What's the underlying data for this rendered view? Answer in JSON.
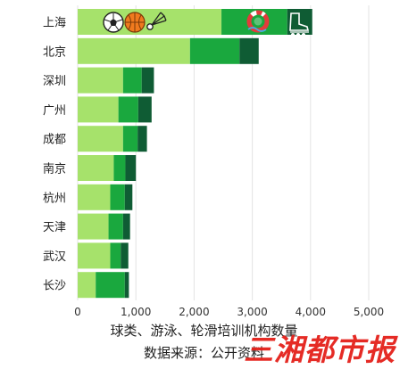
{
  "chart_data": {
    "type": "bar",
    "orientation": "horizontal",
    "stacked": true,
    "categories": [
      "上海",
      "北京",
      "深圳",
      "广州",
      "成都",
      "南京",
      "杭州",
      "天津",
      "武汉",
      "长沙"
    ],
    "series": [
      {
        "color": "#a6e26b",
        "values": [
          2470,
          1930,
          780,
          700,
          780,
          620,
          560,
          530,
          560,
          310
        ]
      },
      {
        "color": "#1aa83e",
        "values": [
          1130,
          850,
          320,
          340,
          250,
          200,
          250,
          250,
          180,
          500
        ]
      },
      {
        "color": "#0f5c34",
        "values": [
          430,
          330,
          210,
          230,
          160,
          180,
          130,
          120,
          130,
          70
        ]
      }
    ],
    "xlim": [
      0,
      5000
    ],
    "xticks": [
      0,
      1000,
      2000,
      3000,
      4000,
      5000
    ],
    "xtick_labels": [
      "0",
      "1,000",
      "2,000",
      "3,000",
      "4,000",
      "5,000"
    ],
    "grid": true,
    "icons": [
      "soccer-ball-icon",
      "basketball-icon",
      "badminton-shuttlecock-icon",
      "swimming-ring-icon",
      "inline-skate-icon"
    ]
  },
  "caption": {
    "line1": "球类、游泳、轮滑培训机构数量",
    "line2": "数据来源：公开资料"
  },
  "watermark": "三湘都市报"
}
